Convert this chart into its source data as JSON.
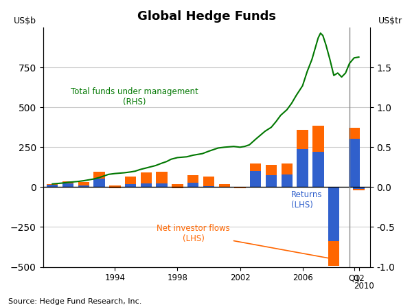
{
  "title": "Global Hedge Funds",
  "ylabel_left": "US$b",
  "ylabel_right": "US$tr",
  "source": "Source: Hedge Fund Research, Inc.",
  "bar_x_numeric": [
    1990,
    1991,
    1992,
    1993,
    1994,
    1995,
    1996,
    1997,
    1998,
    1999,
    2000,
    2001,
    2002,
    2003,
    2004,
    2005,
    2006,
    2007,
    2008,
    2009.3,
    2009.6
  ],
  "returns": [
    15,
    25,
    12,
    55,
    -8,
    18,
    22,
    22,
    -5,
    28,
    5,
    -4,
    -5,
    100,
    75,
    80,
    240,
    220,
    -340,
    305,
    -18
  ],
  "net_flows": [
    5,
    12,
    20,
    40,
    18,
    50,
    70,
    75,
    25,
    45,
    60,
    25,
    8,
    50,
    65,
    70,
    120,
    165,
    -155,
    65,
    5
  ],
  "line_x": [
    1990,
    1990.3,
    1990.6,
    1991,
    1991.3,
    1991.6,
    1992,
    1992.3,
    1992.6,
    1993,
    1993.3,
    1993.6,
    1994,
    1994.3,
    1994.6,
    1995,
    1995.3,
    1995.6,
    1996,
    1996.3,
    1996.6,
    1997,
    1997.3,
    1997.6,
    1998,
    1998.3,
    1998.6,
    1999,
    1999.3,
    1999.6,
    2000,
    2000.3,
    2000.6,
    2001,
    2001.3,
    2001.6,
    2002,
    2002.3,
    2002.6,
    2003,
    2003.3,
    2003.6,
    2004,
    2004.3,
    2004.6,
    2005,
    2005.3,
    2005.6,
    2006,
    2006.3,
    2006.6,
    2007,
    2007.15,
    2007.3,
    2007.5,
    2007.75,
    2008,
    2008.25,
    2008.5,
    2008.75,
    2009,
    2009.3,
    2009.6
  ],
  "line_y": [
    0.04,
    0.045,
    0.05,
    0.06,
    0.065,
    0.07,
    0.08,
    0.09,
    0.1,
    0.12,
    0.14,
    0.16,
    0.17,
    0.175,
    0.18,
    0.19,
    0.2,
    0.22,
    0.24,
    0.255,
    0.27,
    0.3,
    0.32,
    0.35,
    0.37,
    0.375,
    0.38,
    0.4,
    0.41,
    0.42,
    0.45,
    0.47,
    0.49,
    0.5,
    0.505,
    0.51,
    0.5,
    0.51,
    0.53,
    0.6,
    0.65,
    0.7,
    0.75,
    0.82,
    0.9,
    0.97,
    1.05,
    1.15,
    1.27,
    1.45,
    1.6,
    1.87,
    1.93,
    1.9,
    1.78,
    1.6,
    1.4,
    1.43,
    1.38,
    1.43,
    1.55,
    1.62,
    1.63
  ],
  "ylim_left": [
    -500,
    1000
  ],
  "ylim_right": [
    -1.0,
    2.0
  ],
  "bar_color_returns": "#3060cc",
  "bar_color_flows": "#ff6600",
  "line_color": "#007700",
  "vline_x": 2009.0,
  "bar_width": 0.72,
  "xlim": [
    1989.4,
    2010.3
  ],
  "left_yticks": [
    -500,
    -250,
    0,
    250,
    500,
    750
  ],
  "right_yticks": [
    -1.0,
    -0.5,
    0.0,
    0.5,
    1.0,
    1.5
  ]
}
